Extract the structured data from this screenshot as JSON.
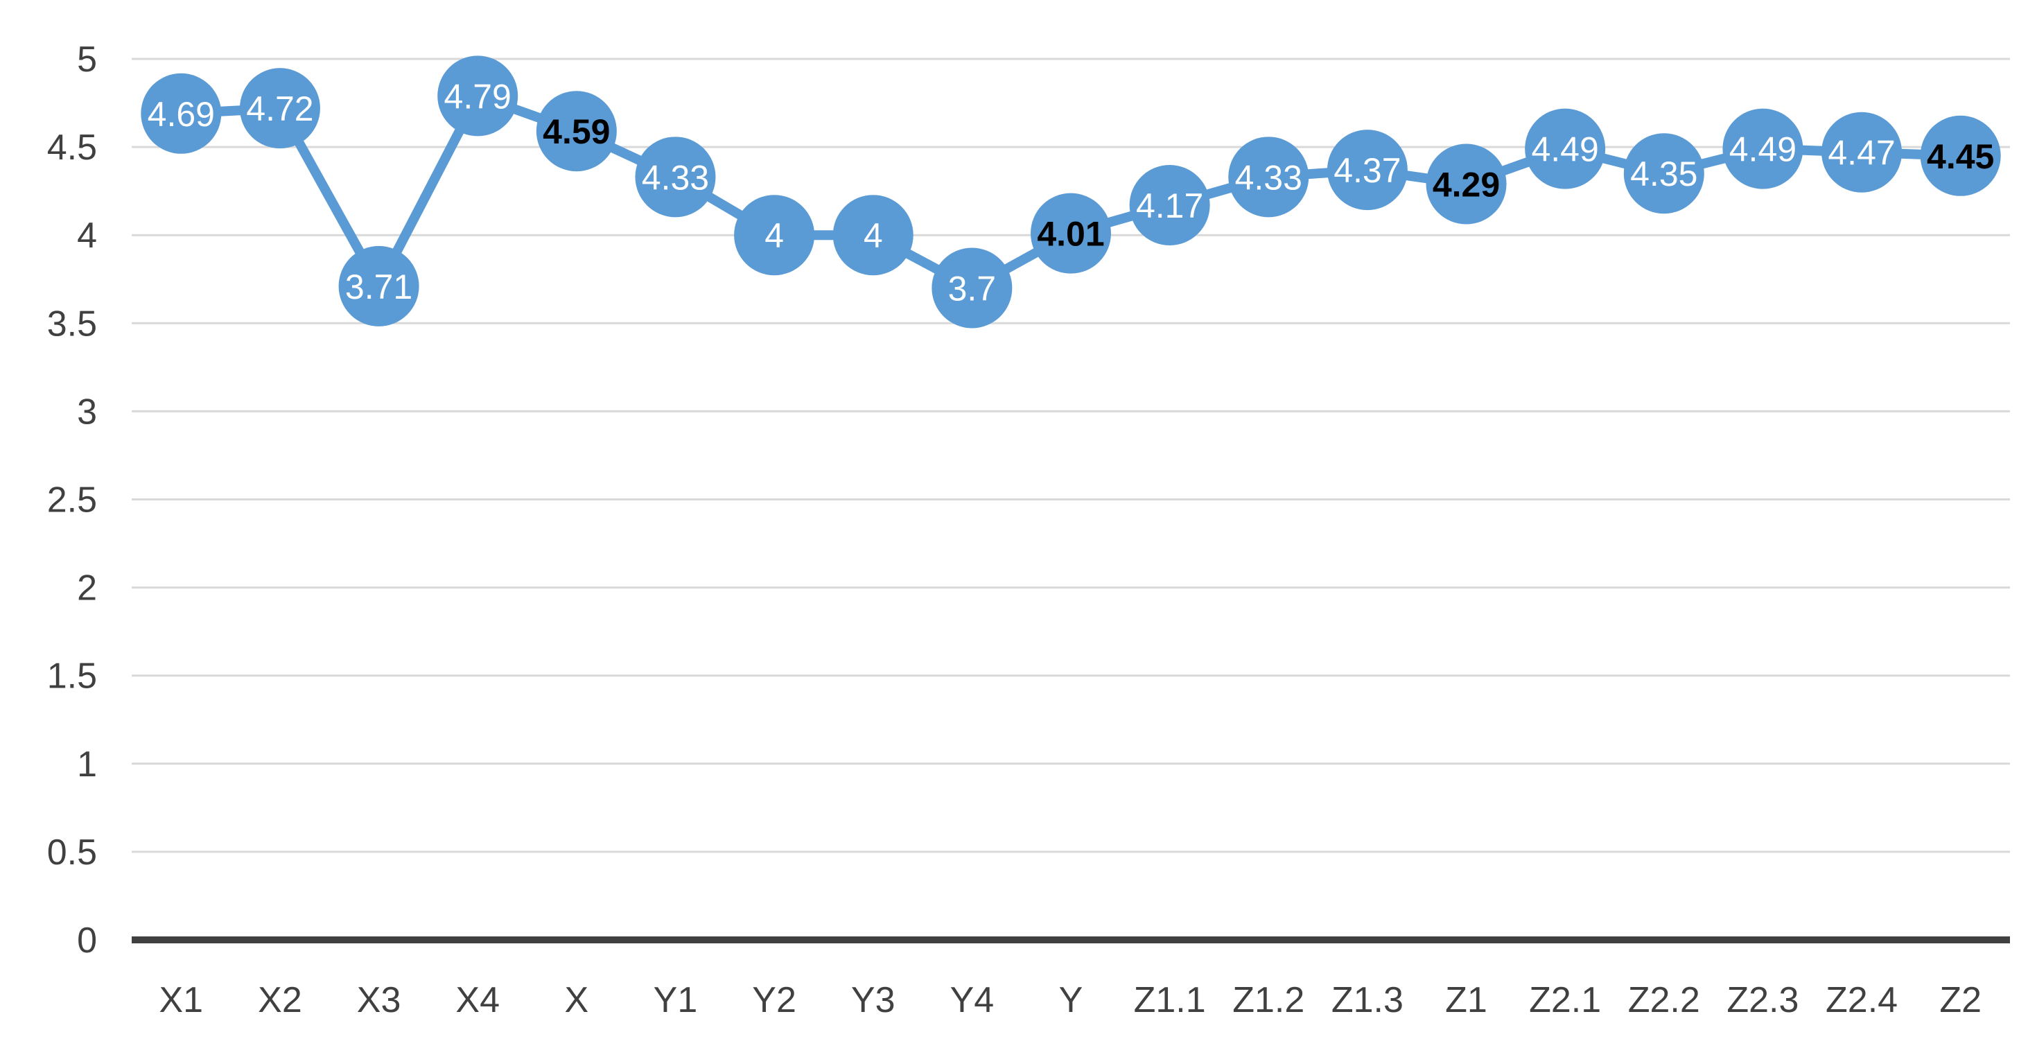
{
  "chart_data": {
    "type": "line",
    "title": "",
    "xlabel": "",
    "ylabel": "",
    "ylim": [
      0,
      5
    ],
    "yticks": [
      "0",
      "0.5",
      "1",
      "1.5",
      "2",
      "2.5",
      "3",
      "3.5",
      "4",
      "4.5",
      "5"
    ],
    "grid": true,
    "legend": "none",
    "categories": [
      "X1",
      "X2",
      "X3",
      "X4",
      "X",
      "Y1",
      "Y2",
      "Y3",
      "Y4",
      "Y",
      "Z1.1",
      "Z1.2",
      "Z1.3",
      "Z1",
      "Z2.1",
      "Z2.2",
      "Z2.3",
      "Z2.4",
      "Z2"
    ],
    "series": [
      {
        "values": [
          4.69,
          4.72,
          3.71,
          4.79,
          4.59,
          4.33,
          4,
          4,
          3.7,
          4.01,
          4.17,
          4.33,
          4.37,
          4.29,
          4.49,
          4.35,
          4.49,
          4.47,
          4.45
        ],
        "labels": [
          "4.69",
          "4.72",
          "3.71",
          "4.79",
          "4.59",
          "4.33",
          "4",
          "4",
          "3.7",
          "4.01",
          "4.17",
          "4.33",
          "4.37",
          "4.29",
          "4.49",
          "4.35",
          "4.49",
          "4.47",
          "4.45"
        ],
        "bold_labels": [
          "X",
          "Y",
          "Z1",
          "Z2"
        ],
        "color": "#5B9BD5"
      }
    ],
    "colors": {
      "series": "#5B9BD5",
      "grid": "#D9D9D9",
      "axis": "#404040",
      "label_normal": "#FFFFFF",
      "label_bold": "#000000"
    }
  }
}
